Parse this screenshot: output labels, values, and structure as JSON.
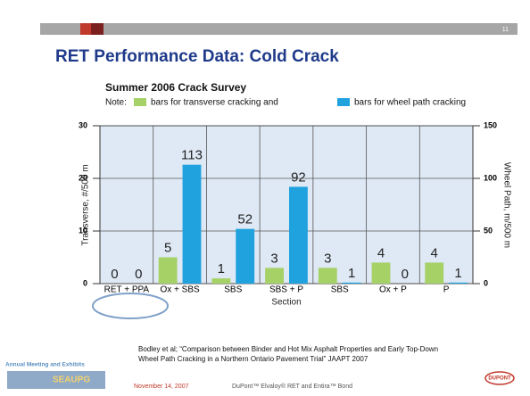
{
  "slide_number": "11",
  "title": "RET Performance Data: Cold Crack",
  "chart_data": {
    "type": "bar",
    "title": "Summer 2006 Crack Survey",
    "legend_note": "Note:",
    "categories": [
      "RET + PPA",
      "Ox + SBS",
      "SBS",
      "SBS + P",
      "SBS",
      "Ox + P",
      "P"
    ],
    "series": [
      {
        "name": "bars for transverse cracking and",
        "color": "#a6d167",
        "values": [
          0,
          5,
          1,
          3,
          3,
          4,
          4
        ]
      },
      {
        "name": "bars for wheel path cracking",
        "color": "#1fa2de",
        "values": [
          0,
          113,
          52,
          92,
          1,
          0,
          1
        ],
        "axis": "y2"
      }
    ],
    "ylim": [
      0,
      30
    ],
    "yticks": [
      0,
      10,
      20,
      30
    ],
    "y2lim": [
      0,
      150
    ],
    "y2ticks": [
      0,
      50,
      100,
      150
    ],
    "y_label": "Transverse, #/500 m",
    "y2_label": "Wheel Path, m/500 m",
    "x_label": "Section",
    "grid": true,
    "legend": "top"
  },
  "footer": {
    "citation": [
      "Bodley et al; “Comparison between Binder and Hot Mix Asphalt Properties and Early Top-Down",
      "Wheel Path Cracking in a Northern Ontario Pavement Trial” JAAPT 2007"
    ],
    "event": "Annual Meeting and Exhibits",
    "logo": "SEAUPG",
    "date": "November 14, 2007",
    "product": "DuPont™ Elvaloy® RET and Entira™ Bond",
    "brand": "DUPONT"
  }
}
